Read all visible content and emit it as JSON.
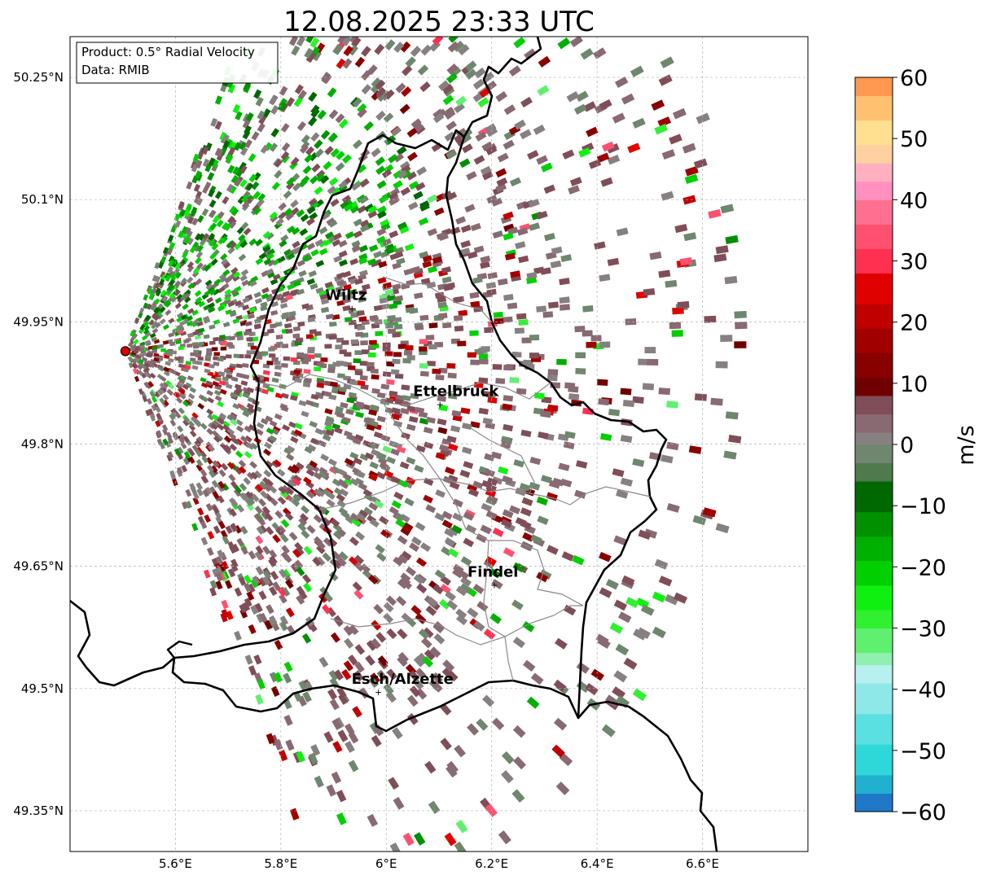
{
  "title": "12.08.2025 23:33 UTC",
  "info_box": {
    "product": "Product: 0.5° Radial Velocity",
    "source": "Data: RMIB"
  },
  "map": {
    "lon_range": [
      5.4,
      6.8
    ],
    "lat_range": [
      49.3,
      50.3
    ],
    "gridlines": true,
    "x_ticks": [
      {
        "value": 5.6,
        "label": "5.6°E"
      },
      {
        "value": 5.8,
        "label": "5.8°E"
      },
      {
        "value": 6.0,
        "label": "6°E"
      },
      {
        "value": 6.2,
        "label": "6.2°E"
      },
      {
        "value": 6.4,
        "label": "6.4°E"
      },
      {
        "value": 6.6,
        "label": "6.6°E"
      }
    ],
    "y_ticks": [
      {
        "value": 50.25,
        "label": "50.25°N"
      },
      {
        "value": 50.1,
        "label": "50.1°N"
      },
      {
        "value": 49.95,
        "label": "49.95°N"
      },
      {
        "value": 49.8,
        "label": "49.8°N"
      },
      {
        "value": 49.65,
        "label": "49.65°N"
      },
      {
        "value": 49.5,
        "label": "49.5°N"
      },
      {
        "value": 49.35,
        "label": "49.35°N"
      }
    ],
    "radar_site": {
      "lon": 5.505,
      "lat": 49.914
    },
    "cities": [
      {
        "name": "Wiltz",
        "lon": 5.935,
        "lat": 49.967
      },
      {
        "name": "Ettelbruck",
        "lon": 6.102,
        "lat": 49.849
      },
      {
        "name": "Findel",
        "lon": 6.205,
        "lat": 49.627
      },
      {
        "name": "Esch/Alzette",
        "lon": 5.985,
        "lat": 49.496
      }
    ]
  },
  "colorbar": {
    "label": "m/s",
    "range": [
      -60,
      60
    ],
    "ticks": [
      {
        "value": 60,
        "label": "60"
      },
      {
        "value": 50,
        "label": "50"
      },
      {
        "value": 40,
        "label": "40"
      },
      {
        "value": 30,
        "label": "30"
      },
      {
        "value": 20,
        "label": "20"
      },
      {
        "value": 10,
        "label": "10"
      },
      {
        "value": 0,
        "label": "0"
      },
      {
        "value": -10,
        "label": "−10"
      },
      {
        "value": -20,
        "label": "−20"
      },
      {
        "value": -30,
        "label": "−30"
      },
      {
        "value": -40,
        "label": "−40"
      },
      {
        "value": -50,
        "label": "−50"
      },
      {
        "value": -60,
        "label": "−60"
      }
    ],
    "colors": [
      {
        "from": -60,
        "to": -57,
        "color": "#1f78c8"
      },
      {
        "from": -57,
        "to": -54,
        "color": "#21b0d0"
      },
      {
        "from": -54,
        "to": -49,
        "color": "#2ed8d8"
      },
      {
        "from": -49,
        "to": -44,
        "color": "#5ae0e0"
      },
      {
        "from": -44,
        "to": -39,
        "color": "#8ee8e8"
      },
      {
        "from": -39,
        "to": -36,
        "color": "#b8f0f0"
      },
      {
        "from": -36,
        "to": -34,
        "color": "#90f0b0"
      },
      {
        "from": -34,
        "to": -30,
        "color": "#60f070"
      },
      {
        "from": -30,
        "to": -27,
        "color": "#30f030"
      },
      {
        "from": -27,
        "to": -23,
        "color": "#10f010"
      },
      {
        "from": -23,
        "to": -19,
        "color": "#00d000"
      },
      {
        "from": -19,
        "to": -15,
        "color": "#00b000"
      },
      {
        "from": -15,
        "to": -11,
        "color": "#009000"
      },
      {
        "from": -11,
        "to": -6,
        "color": "#006800"
      },
      {
        "from": -6,
        "to": -3,
        "color": "#4e7a4e"
      },
      {
        "from": -3,
        "to": 0,
        "color": "#6e876e"
      },
      {
        "from": 0,
        "to": 2,
        "color": "#878080"
      },
      {
        "from": 2,
        "to": 5,
        "color": "#886a72"
      },
      {
        "from": 5,
        "to": 8,
        "color": "#804e58"
      },
      {
        "from": 8,
        "to": 11,
        "color": "#700000"
      },
      {
        "from": 11,
        "to": 15,
        "color": "#880000"
      },
      {
        "from": 15,
        "to": 19,
        "color": "#a00000"
      },
      {
        "from": 19,
        "to": 23,
        "color": "#c00000"
      },
      {
        "from": 23,
        "to": 28,
        "color": "#e00000"
      },
      {
        "from": 28,
        "to": 32,
        "color": "#ff3050"
      },
      {
        "from": 32,
        "to": 36,
        "color": "#ff5070"
      },
      {
        "from": 36,
        "to": 40,
        "color": "#ff7090"
      },
      {
        "from": 40,
        "to": 43,
        "color": "#ff90c0"
      },
      {
        "from": 43,
        "to": 46,
        "color": "#ffb0c0"
      },
      {
        "from": 46,
        "to": 49,
        "color": "#ffd0a0"
      },
      {
        "from": 49,
        "to": 53,
        "color": "#ffe090"
      },
      {
        "from": 53,
        "to": 57,
        "color": "#ffc070"
      },
      {
        "from": 57,
        "to": 60,
        "color": "#ff9850"
      }
    ]
  }
}
